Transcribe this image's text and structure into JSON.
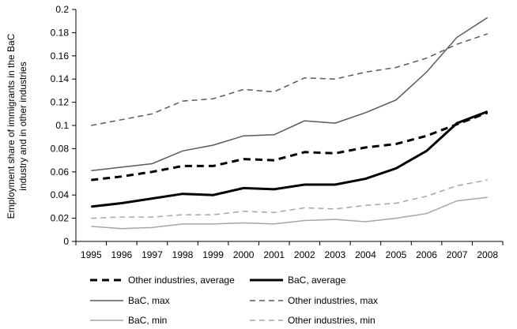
{
  "chart_data": {
    "type": "line",
    "title": "",
    "xlabel": "",
    "ylabel": "Employment share of immigrants in the BaC industry and in other industries",
    "ylabel_lines": [
      "Employment share of immigrants in the BaC",
      "industry and in other industries"
    ],
    "x": [
      "1995",
      "1996",
      "1997",
      "1998",
      "1999",
      "2000",
      "2001",
      "2002",
      "2003",
      "2004",
      "2005",
      "2006",
      "2007",
      "2008"
    ],
    "ylim": [
      0,
      0.2
    ],
    "yticks": [
      "0",
      "0.02",
      "0.04",
      "0.06",
      "0.08",
      "0.1",
      "0.12",
      "0.14",
      "0.16",
      "0.18",
      "0.2"
    ],
    "grid": false,
    "legend_position": "bottom",
    "series": [
      {
        "name": "Other industries, average",
        "color": "#000000",
        "style": "dashed",
        "weight": "bold",
        "values": [
          0.053,
          0.056,
          0.06,
          0.065,
          0.065,
          0.071,
          0.07,
          0.077,
          0.076,
          0.081,
          0.084,
          0.091,
          0.101,
          0.111
        ]
      },
      {
        "name": "BaC, average",
        "color": "#000000",
        "style": "solid",
        "weight": "bold",
        "values": [
          0.03,
          0.033,
          0.037,
          0.041,
          0.04,
          0.046,
          0.045,
          0.049,
          0.049,
          0.054,
          0.063,
          0.078,
          0.102,
          0.112
        ]
      },
      {
        "name": "BaC, max",
        "color": "#595959",
        "style": "solid",
        "weight": "normal",
        "values": [
          0.061,
          0.064,
          0.067,
          0.078,
          0.083,
          0.091,
          0.092,
          0.104,
          0.102,
          0.111,
          0.122,
          0.146,
          0.176,
          0.193
        ]
      },
      {
        "name": "Other industries, max",
        "color": "#595959",
        "style": "dashed",
        "weight": "normal",
        "values": [
          0.1,
          0.105,
          0.11,
          0.121,
          0.123,
          0.131,
          0.129,
          0.141,
          0.14,
          0.146,
          0.15,
          0.158,
          0.17,
          0.179
        ]
      },
      {
        "name": "BaC, min",
        "color": "#a6a6a6",
        "style": "solid",
        "weight": "normal",
        "values": [
          0.013,
          0.011,
          0.012,
          0.015,
          0.015,
          0.016,
          0.015,
          0.018,
          0.019,
          0.017,
          0.02,
          0.024,
          0.035,
          0.038
        ]
      },
      {
        "name": "Other industries, min",
        "color": "#a6a6a6",
        "style": "dashed",
        "weight": "normal",
        "values": [
          0.02,
          0.021,
          0.021,
          0.023,
          0.023,
          0.026,
          0.025,
          0.029,
          0.028,
          0.031,
          0.033,
          0.039,
          0.048,
          0.053
        ]
      }
    ]
  }
}
